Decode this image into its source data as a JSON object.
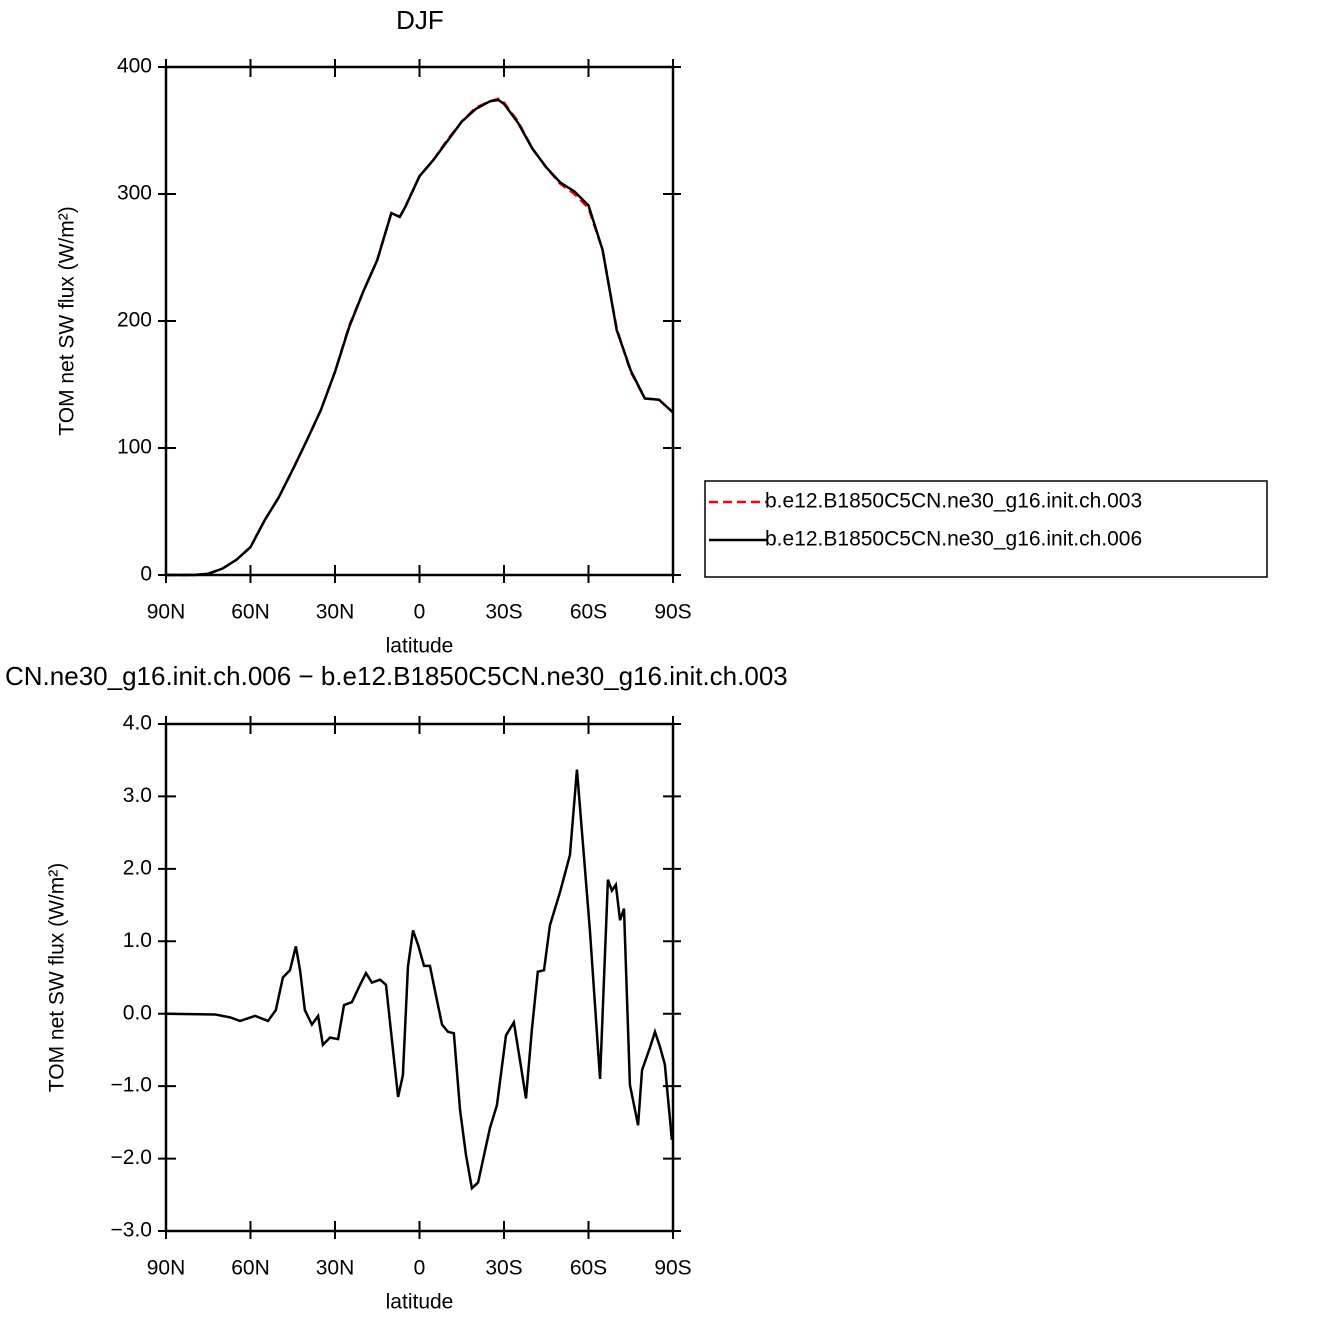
{
  "chart_data": [
    {
      "type": "line",
      "title": "DJF",
      "xlabel": "latitude",
      "ylabel": "TOM net SW flux (W/m²)",
      "x": [
        90,
        85,
        80,
        75,
        70,
        65,
        60,
        55,
        50,
        45,
        40,
        35,
        30,
        25,
        20,
        15,
        10,
        7,
        5,
        0,
        -5,
        -10,
        -15,
        -20,
        -25,
        -28,
        -30,
        -35,
        -40,
        -45,
        -50,
        -55,
        -60,
        -65,
        -70,
        -75,
        -80,
        -85,
        -90
      ],
      "series": [
        {
          "name": "b.e12.B1850C5CN.ne30_g16.init.ch.003",
          "color": "#ff0000",
          "linestyle": "dashed",
          "values": [
            0,
            0,
            0,
            1,
            5,
            12,
            22,
            43,
            61,
            83,
            106,
            130,
            160,
            196,
            223,
            248,
            285,
            282,
            290,
            314,
            327,
            343,
            357,
            368,
            373,
            375,
            372,
            357,
            336,
            321,
            308,
            300,
            289,
            256,
            194,
            160,
            139,
            138,
            128
          ]
        },
        {
          "name": "b.e12.B1850C5CN.ne30_g16.init.ch.006",
          "color": "#000000",
          "linestyle": "solid",
          "values": [
            0,
            0,
            0,
            1,
            5,
            12,
            22,
            43,
            61,
            83,
            106,
            130,
            160,
            195,
            223,
            248,
            285,
            282,
            290,
            314,
            327,
            342,
            357,
            367,
            373,
            374,
            371,
            356,
            336,
            321,
            309,
            302,
            291,
            256,
            193,
            161,
            139,
            138,
            128
          ]
        }
      ],
      "xlim": [
        90,
        -90
      ],
      "xticks": [
        {
          "value": 90,
          "label": "90N"
        },
        {
          "value": 60,
          "label": "60N"
        },
        {
          "value": 30,
          "label": "30N"
        },
        0,
        {
          "value": -30,
          "label": "30S"
        },
        {
          "value": -60,
          "label": "60S"
        },
        {
          "value": -90,
          "label": "90S"
        }
      ],
      "ylim": [
        0,
        400
      ],
      "yticks": [
        0,
        100,
        200,
        300,
        400
      ],
      "legend": "right"
    },
    {
      "type": "line",
      "title": "CN.ne30_g16.init.ch.006 − b.e12.B1850C5CN.ne30_g16.init.ch.003",
      "xlabel": "latitude",
      "ylabel": "TOM net SW flux (W/m²)",
      "x": [
        90,
        72.6,
        67.3,
        63.7,
        58.4,
        53.8,
        51,
        48.5,
        46,
        43.9,
        42.4,
        40.7,
        38.2,
        36,
        34.3,
        31.8,
        28.9,
        26.8,
        24,
        21.1,
        19,
        16.9,
        14,
        11.9,
        9.8,
        7.6,
        5.9,
        4.1,
        2.3,
        0.5,
        -1.6,
        -3.7,
        -5.8,
        -8,
        -10.1,
        -12.2,
        -14.4,
        -16.5,
        -18.6,
        -20.8,
        -25,
        -27.5,
        -30.7,
        -33.5,
        -35.7,
        -37.8,
        -39.9,
        -42,
        -44.2,
        -46.3,
        -49.9,
        -53.4,
        -55.9,
        -60.5,
        -64.1,
        -66.9,
        -68.3,
        -69.7,
        -71.2,
        -72.6,
        -74.7,
        -77.6,
        -79,
        -81.8,
        -83.6,
        -85.4,
        -87.1,
        -89.6
      ],
      "series": [
        {
          "color": "#000000",
          "linestyle": "solid",
          "values": [
            0,
            -0.01,
            -0.05,
            -0.1,
            -0.03,
            -0.1,
            0.05,
            0.5,
            0.6,
            0.93,
            0.6,
            0.05,
            -0.15,
            -0.03,
            -0.43,
            -0.33,
            -0.35,
            0.12,
            0.16,
            0.4,
            0.56,
            0.43,
            0.47,
            0.4,
            -0.36,
            -1.15,
            -0.85,
            0.65,
            1.15,
            0.95,
            0.66,
            0.66,
            0.26,
            -0.15,
            -0.25,
            -0.27,
            -1.33,
            -1.95,
            -2.41,
            -2.33,
            -1.58,
            -1.26,
            -0.3,
            -0.12,
            -0.65,
            -1.17,
            -0.22,
            0.58,
            0.6,
            1.22,
            1.68,
            2.19,
            3.37,
            1.15,
            -0.9,
            1.85,
            1.7,
            1.78,
            1.29,
            1.45,
            -0.98,
            -1.54,
            -0.78,
            -0.47,
            -0.25,
            -0.46,
            -0.7,
            -1.74
          ]
        }
      ],
      "xlim": [
        90,
        -90
      ],
      "xticks": [
        {
          "value": 90,
          "label": "90N"
        },
        {
          "value": 60,
          "label": "60N"
        },
        {
          "value": 30,
          "label": "30N"
        },
        0,
        {
          "value": -30,
          "label": "30S"
        },
        {
          "value": -60,
          "label": "60S"
        },
        {
          "value": -90,
          "label": "90S"
        }
      ],
      "ylim": [
        -3,
        4
      ],
      "yticks": [
        {
          "value": -3,
          "label": "−3.0"
        },
        {
          "value": -2,
          "label": "−2.0"
        },
        {
          "value": -1,
          "label": "−1.0"
        },
        {
          "value": 0,
          "label": "0.0"
        },
        {
          "value": 1,
          "label": "1.0"
        },
        {
          "value": 2,
          "label": "2.0"
        },
        {
          "value": 3,
          "label": "3.0"
        },
        {
          "value": 4,
          "label": "4.0"
        }
      ]
    }
  ]
}
